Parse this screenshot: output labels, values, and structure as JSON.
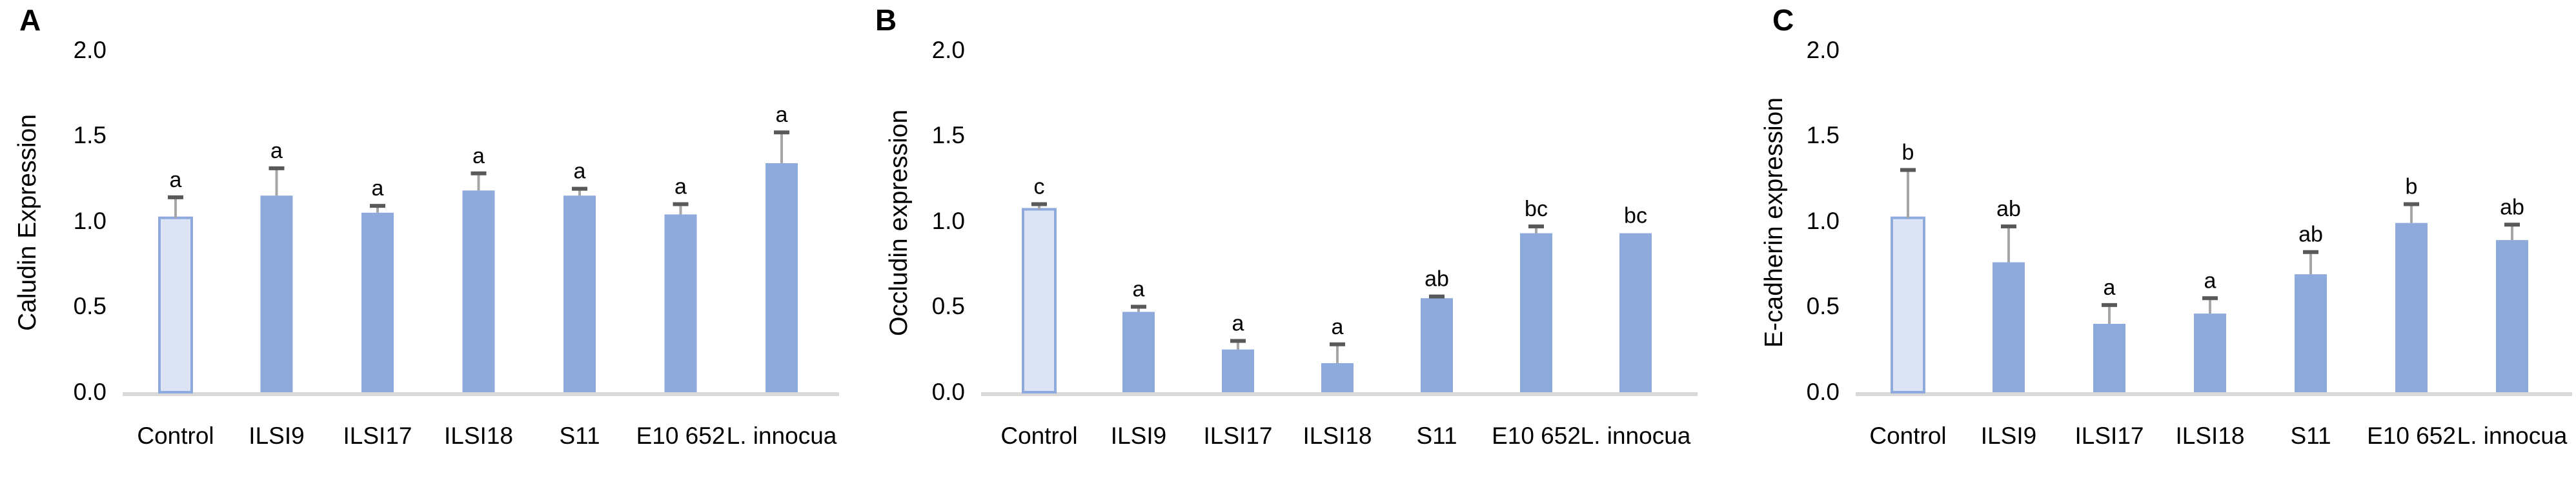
{
  "figure": {
    "background": "#ffffff",
    "bar_fill": "#8ea9db",
    "control_fill": "#dce4f5",
    "control_stroke": "#8faadc",
    "axis_line_color": "#d9d9d9",
    "error_stem_color": "#a6a6a6",
    "error_cap_color": "#595959",
    "text_color": "#000000"
  },
  "chart_data": [
    {
      "type": "bar",
      "panel_label": "A",
      "title": "",
      "xlabel": "",
      "ylabel": "Caludin Expression",
      "categories": [
        "Control",
        "ILSI9",
        "ILSI17",
        "ILSI18",
        "S11",
        "E10 652",
        "L. innocua"
      ],
      "values": [
        1.02,
        1.15,
        1.05,
        1.18,
        1.15,
        1.04,
        1.34
      ],
      "error_top": [
        1.14,
        1.31,
        1.09,
        1.28,
        1.19,
        1.1,
        1.52
      ],
      "sig_letters": [
        "a",
        "a",
        "a",
        "a",
        "a",
        "a",
        "a"
      ],
      "control_index": 0,
      "ylim": [
        0,
        2.0
      ],
      "ytick_values": [
        0,
        0.5,
        1.0,
        1.5,
        2.0
      ],
      "ytick_labels": [
        "0.0",
        "0.5",
        "1.0",
        "1.5",
        "2.0"
      ],
      "grid": "off",
      "legend": "none"
    },
    {
      "type": "bar",
      "panel_label": "B",
      "title": "",
      "xlabel": "",
      "ylabel": "Occludin expression",
      "categories": [
        "Control",
        "ILSI9",
        "ILSI17",
        "ILSI18",
        "S11",
        "E10 652",
        "L. innocua"
      ],
      "values": [
        1.07,
        0.47,
        0.25,
        0.17,
        0.55,
        0.93,
        0.93
      ],
      "error_top": [
        1.1,
        0.5,
        0.3,
        0.28,
        0.56,
        0.97,
        null
      ],
      "sig_letters": [
        "c",
        "a",
        "a",
        "a",
        "ab",
        "bc",
        "bc"
      ],
      "control_index": 0,
      "ylim": [
        0,
        2.0
      ],
      "ytick_values": [
        0,
        0.5,
        1.0,
        1.5,
        2.0
      ],
      "ytick_labels": [
        "0.0",
        "0.5",
        "1.0",
        "1.5",
        "2.0"
      ],
      "grid": "off",
      "legend": "none"
    },
    {
      "type": "bar",
      "panel_label": "C",
      "title": "",
      "xlabel": "",
      "ylabel": "E-cadherin expression",
      "categories": [
        "Control",
        "ILSI9",
        "ILSI17",
        "ILSI18",
        "S11",
        "E10 652",
        "L. innocua"
      ],
      "values": [
        1.02,
        0.76,
        0.4,
        0.46,
        0.69,
        0.99,
        0.89
      ],
      "error_top": [
        1.3,
        0.97,
        0.51,
        0.55,
        0.82,
        1.1,
        0.98
      ],
      "sig_letters": [
        "b",
        "ab",
        "a",
        "a",
        "ab",
        "b",
        "ab"
      ],
      "control_index": 0,
      "ylim": [
        0,
        2.0
      ],
      "ytick_values": [
        0,
        0.5,
        1.0,
        1.5,
        2.0
      ],
      "ytick_labels": [
        "0.0",
        "0.5",
        "1.0",
        "1.5",
        "2.0"
      ],
      "grid": "off",
      "legend": "none"
    }
  ]
}
